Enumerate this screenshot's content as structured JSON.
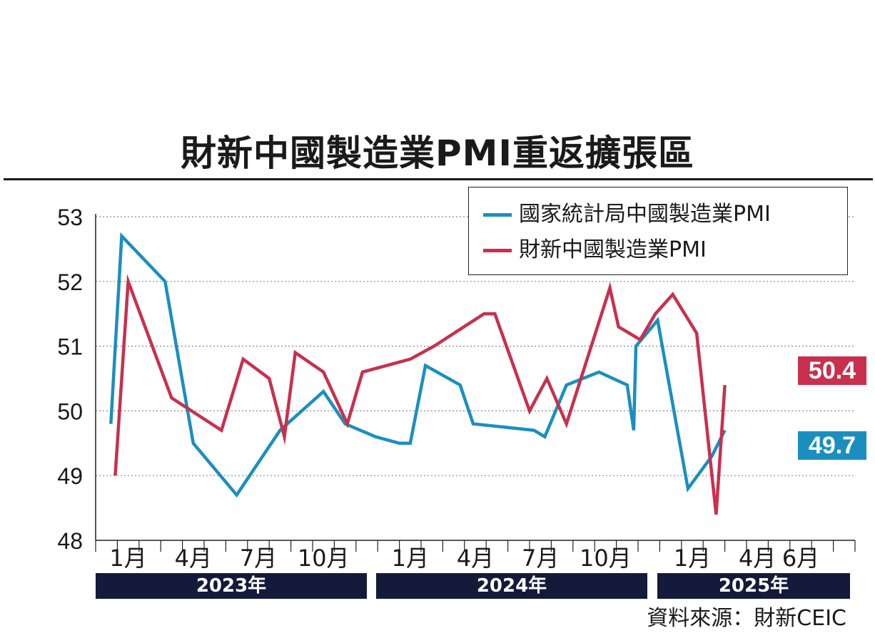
{
  "chart_data": {
    "type": "line",
    "title": "財新中國製造業PMI重返擴張區",
    "ylim": [
      48,
      53
    ],
    "y_ticks": [
      "48",
      "49",
      "50",
      "51",
      "52",
      "53"
    ],
    "grid": true,
    "legend_position": "top-right",
    "x_tick_labels": [
      {
        "index": 1,
        "label": "1月"
      },
      {
        "index": 4,
        "label": "4月"
      },
      {
        "index": 7,
        "label": "7月"
      },
      {
        "index": 10,
        "label": "10月"
      },
      {
        "index": 14,
        "label": "1月"
      },
      {
        "index": 17,
        "label": "4月"
      },
      {
        "index": 20,
        "label": "7月"
      },
      {
        "index": 23,
        "label": "10月"
      },
      {
        "index": 27,
        "label": "1月"
      },
      {
        "index": 30,
        "label": "4月"
      },
      {
        "index": 32,
        "label": "6月"
      }
    ],
    "years": [
      {
        "label": "2023年",
        "from": 0,
        "to": 12
      },
      {
        "label": "2024年",
        "from": 13,
        "to": 25
      },
      {
        "label": "2025年",
        "from": 26,
        "to": 33
      }
    ],
    "series": [
      {
        "name": "國家統計局中國製造業PMI",
        "color": "#1a8fbf",
        "points": [
          [
            0.2,
            49.8
          ],
          [
            0.7,
            52.7
          ],
          [
            2.7,
            52.0
          ],
          [
            4.0,
            49.5
          ],
          [
            6.0,
            48.7
          ],
          [
            8.0,
            49.7
          ],
          [
            10.0,
            50.3
          ],
          [
            11.0,
            49.8
          ],
          [
            12.4,
            49.6
          ],
          [
            13.5,
            49.5
          ],
          [
            14.0,
            49.5
          ],
          [
            14.7,
            50.7
          ],
          [
            16.3,
            50.4
          ],
          [
            16.9,
            49.8
          ],
          [
            19.7,
            49.7
          ],
          [
            20.2,
            49.6
          ],
          [
            21.2,
            50.4
          ],
          [
            22.7,
            50.6
          ],
          [
            24.0,
            50.4
          ],
          [
            24.3,
            49.7
          ],
          [
            24.4,
            51.0
          ],
          [
            25.4,
            51.4
          ],
          [
            26.8,
            48.8
          ],
          [
            27.9,
            49.3
          ],
          [
            28.5,
            49.7
          ]
        ],
        "end_label": "49.7"
      },
      {
        "name": "財新中國製造業PMI",
        "color": "#c8304e",
        "points": [
          [
            0.4,
            49.0
          ],
          [
            1.0,
            52.0
          ],
          [
            3.0,
            50.2
          ],
          [
            5.3,
            49.7
          ],
          [
            6.3,
            50.8
          ],
          [
            7.5,
            50.5
          ],
          [
            8.2,
            49.6
          ],
          [
            8.7,
            50.9
          ],
          [
            10.0,
            50.6
          ],
          [
            11.1,
            49.8
          ],
          [
            11.8,
            50.6
          ],
          [
            14.0,
            50.8
          ],
          [
            15.1,
            51.0
          ],
          [
            17.4,
            51.5
          ],
          [
            17.9,
            51.5
          ],
          [
            19.5,
            50.0
          ],
          [
            20.3,
            50.5
          ],
          [
            21.2,
            49.8
          ],
          [
            23.2,
            51.9
          ],
          [
            23.6,
            51.3
          ],
          [
            24.6,
            51.1
          ],
          [
            25.3,
            51.5
          ],
          [
            26.1,
            51.8
          ],
          [
            27.2,
            51.2
          ],
          [
            28.1,
            48.4
          ],
          [
            28.5,
            50.4
          ]
        ],
        "end_label": "50.4"
      }
    ]
  },
  "source": "資料來源：財新CEIC"
}
